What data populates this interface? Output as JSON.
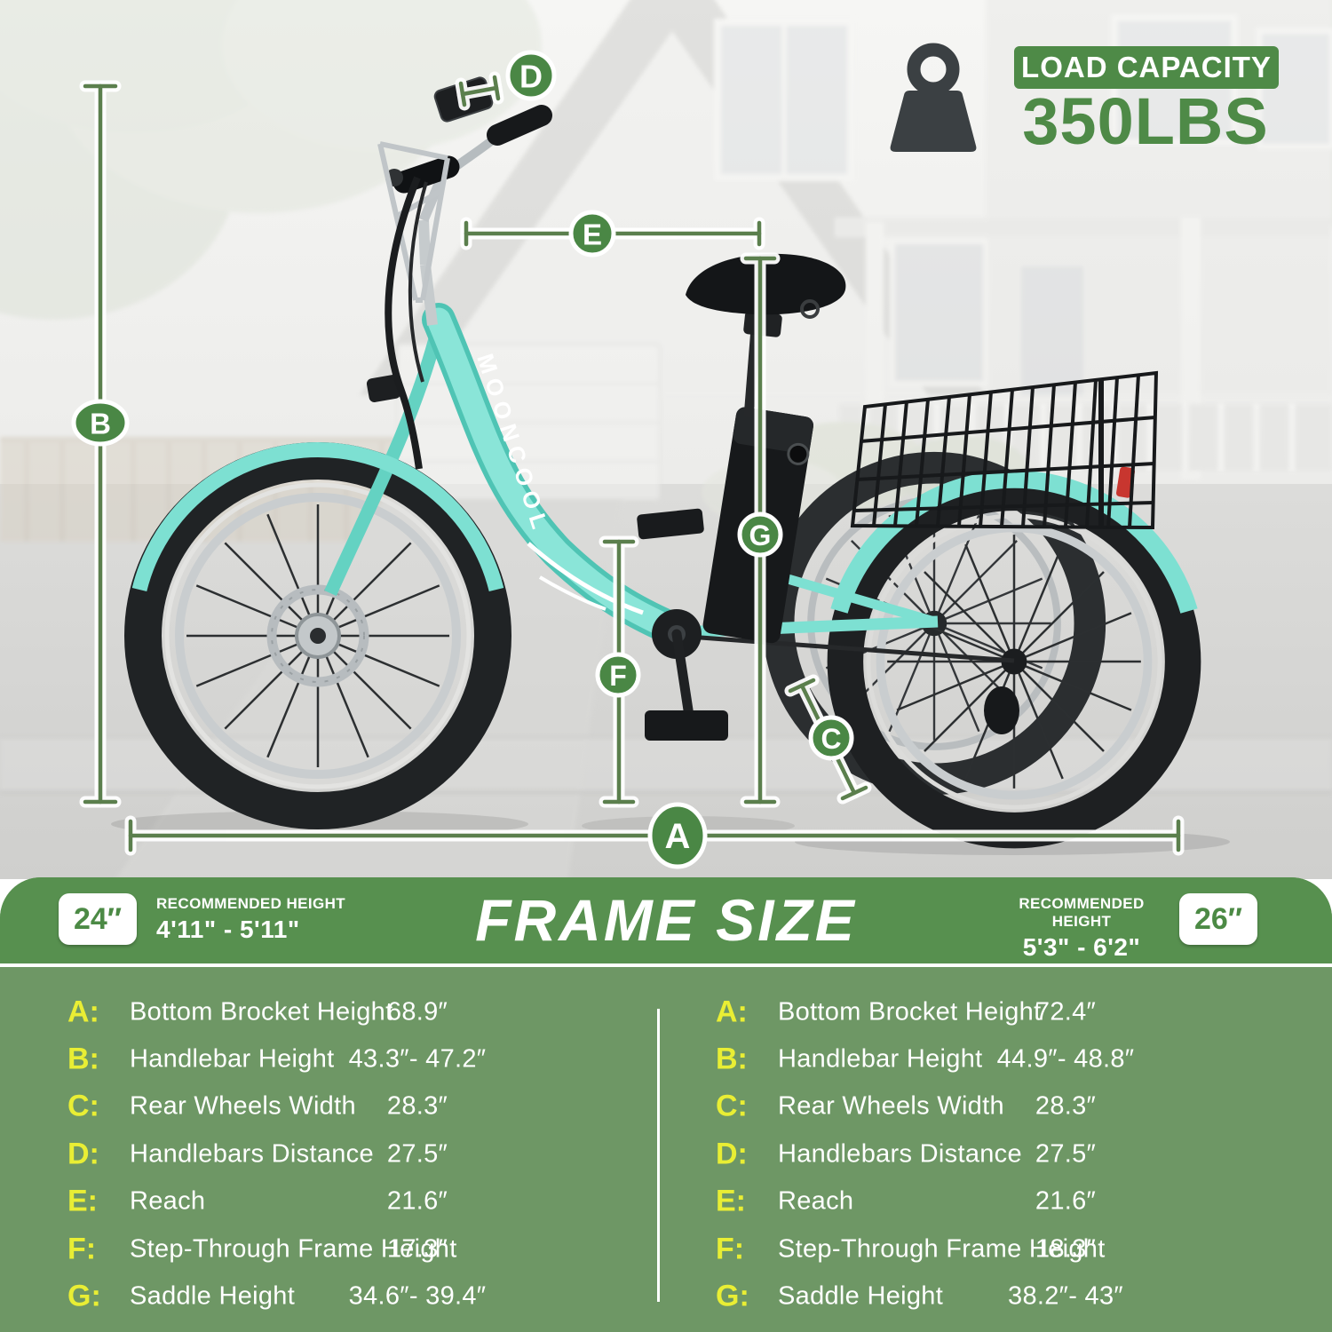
{
  "load_capacity": {
    "label": "LOAD CAPACITY",
    "value": "350LBS"
  },
  "icons": {
    "load_capacity": "weight-icon"
  },
  "bike": {
    "brand": "MOONCOOL"
  },
  "diagram": {
    "labels": [
      "A",
      "B",
      "C",
      "D",
      "E",
      "F",
      "G"
    ]
  },
  "frame_size": {
    "title": "FRAME SIZE",
    "columns": [
      {
        "wheel_size": "24″",
        "recommended_height_label": "RECOMMENDED HEIGHT",
        "recommended_height": "4'11\" - 5'11\"",
        "rows": [
          {
            "letter": "A:",
            "label": "Bottom Brocket Height",
            "value": "68.9″"
          },
          {
            "letter": "B:",
            "label": "Handlebar Height",
            "value": "43.3″- 47.2″"
          },
          {
            "letter": "C:",
            "label": "Rear Wheels Width",
            "value": "28.3″"
          },
          {
            "letter": "D:",
            "label": "Handlebars Distance",
            "value": "27.5″"
          },
          {
            "letter": "E:",
            "label": "Reach",
            "value": "21.6″"
          },
          {
            "letter": "F:",
            "label": "Step-Through Frame Height",
            "value": "17.3″"
          },
          {
            "letter": "G:",
            "label": "Saddle Height",
            "value": "34.6″- 39.4″"
          }
        ]
      },
      {
        "wheel_size": "26″",
        "recommended_height_label": "RECOMMENDED HEIGHT",
        "recommended_height": "5'3\" - 6'2\"",
        "rows": [
          {
            "letter": "A:",
            "label": "Bottom Brocket Height",
            "value": "72.4″"
          },
          {
            "letter": "B:",
            "label": "Handlebar Height",
            "value": "44.9″- 48.8″"
          },
          {
            "letter": "C:",
            "label": "Rear Wheels Width",
            "value": "28.3″"
          },
          {
            "letter": "D:",
            "label": "Handlebars Distance",
            "value": "27.5″"
          },
          {
            "letter": "E:",
            "label": "Reach",
            "value": "21.6″"
          },
          {
            "letter": "F:",
            "label": "Step-Through Frame Height",
            "value": "18.3″"
          },
          {
            "letter": "G:",
            "label": "Saddle Height",
            "value": "38.2″- 43″"
          }
        ]
      }
    ]
  },
  "colors": {
    "accent_green": "#4e8a47",
    "panel_green": "#6e9765",
    "header_green": "#57904f",
    "letter_yellow": "#e9ee34",
    "bike_mint": "#85e2d5",
    "weight_icon_gray": "#3b4043"
  }
}
